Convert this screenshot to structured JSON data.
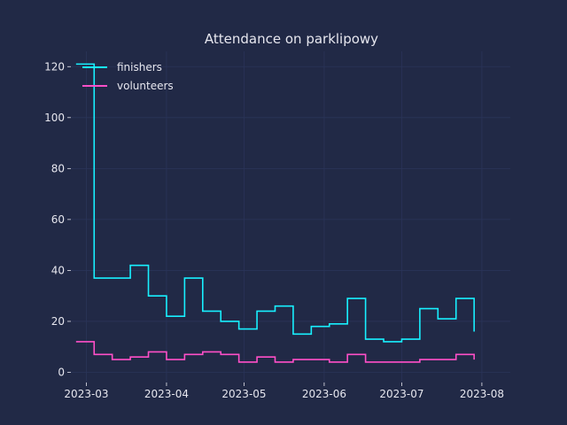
{
  "chart_data": {
    "type": "line",
    "drawstyle": "steps-post",
    "title": "Attendance on parklipowy",
    "xlabel": "",
    "ylabel": "",
    "x_ticks": [
      "2023-03",
      "2023-04",
      "2023-05",
      "2023-06",
      "2023-07",
      "2023-08"
    ],
    "y_ticks": [
      0,
      20,
      40,
      60,
      80,
      100,
      120
    ],
    "xlim": [
      "2023-02-23",
      "2023-08-12"
    ],
    "ylim": [
      -4,
      126
    ],
    "grid": true,
    "legend_position": "top-left",
    "x": [
      "2023-02-25",
      "2023-03-04",
      "2023-03-11",
      "2023-03-18",
      "2023-03-25",
      "2023-04-01",
      "2023-04-08",
      "2023-04-15",
      "2023-04-22",
      "2023-04-29",
      "2023-05-06",
      "2023-05-13",
      "2023-05-20",
      "2023-05-27",
      "2023-06-03",
      "2023-06-10",
      "2023-06-17",
      "2023-06-24",
      "2023-07-01",
      "2023-07-08",
      "2023-07-15",
      "2023-07-22",
      "2023-07-29"
    ],
    "series": [
      {
        "name": "finishers",
        "color": "#18f0ff",
        "values": [
          121,
          37,
          37,
          42,
          30,
          22,
          37,
          24,
          20,
          17,
          24,
          26,
          15,
          18,
          19,
          29,
          13,
          12,
          13,
          25,
          21,
          29,
          16
        ]
      },
      {
        "name": "volunteers",
        "color": "#ff4fc8",
        "values": [
          12,
          7,
          5,
          6,
          8,
          5,
          7,
          8,
          7,
          4,
          6,
          4,
          5,
          5,
          4,
          7,
          4,
          4,
          4,
          5,
          5,
          7,
          5
        ]
      }
    ]
  }
}
